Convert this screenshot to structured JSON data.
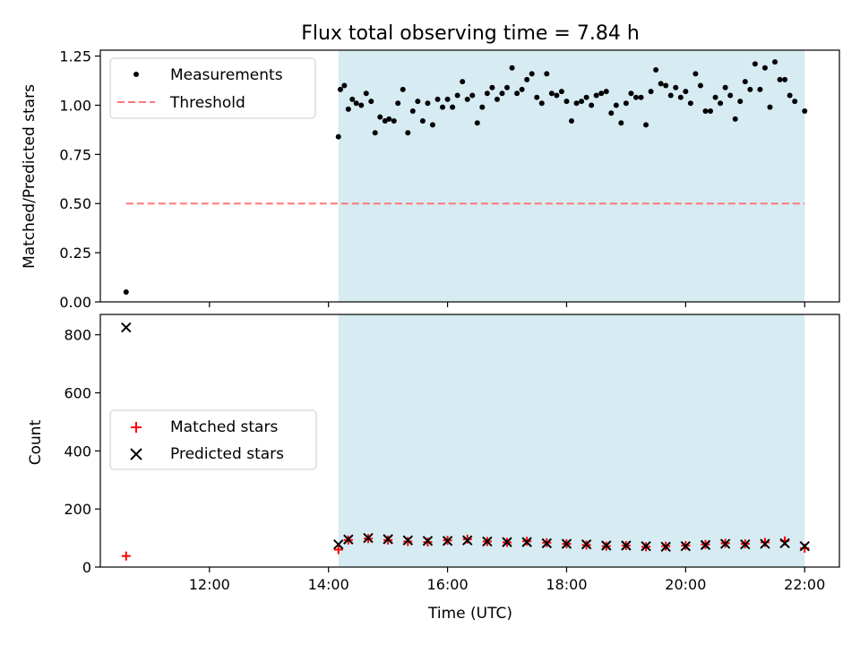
{
  "chart_data": [
    {
      "type": "scatter",
      "title": "Flux total observing time = 7.84 h",
      "ylabel": "Matched/Predicted stars",
      "xlim": [
        "10:10",
        "22:35"
      ],
      "ylim": [
        0,
        1.28
      ],
      "yticks": [
        "0.00",
        "0.25",
        "0.50",
        "0.75",
        "1.00",
        "1.25"
      ],
      "shaded_span": {
        "start": "14:10",
        "end": "22:00",
        "color": "#add8e6"
      },
      "legend": {
        "placement": "upper-left",
        "entries": [
          "Measurements",
          "Threshold"
        ]
      },
      "series": [
        {
          "name": "Measurements",
          "marker": "dot",
          "color": "#000000",
          "points": [
            [
              "10:36",
              0.05
            ],
            [
              "14:10",
              0.84
            ],
            [
              "14:12",
              1.08
            ],
            [
              "14:16",
              1.1
            ],
            [
              "14:20",
              0.98
            ],
            [
              "14:24",
              1.03
            ],
            [
              "14:28",
              1.01
            ],
            [
              "14:33",
              1.0
            ],
            [
              "14:38",
              1.06
            ],
            [
              "14:43",
              1.02
            ],
            [
              "14:47",
              0.86
            ],
            [
              "14:52",
              0.94
            ],
            [
              "14:57",
              0.92
            ],
            [
              "15:01",
              0.93
            ],
            [
              "15:06",
              0.92
            ],
            [
              "15:10",
              1.01
            ],
            [
              "15:15",
              1.08
            ],
            [
              "15:20",
              0.86
            ],
            [
              "15:25",
              0.97
            ],
            [
              "15:30",
              1.02
            ],
            [
              "15:35",
              0.92
            ],
            [
              "15:40",
              1.01
            ],
            [
              "15:45",
              0.9
            ],
            [
              "15:50",
              1.03
            ],
            [
              "15:55",
              0.99
            ],
            [
              "16:00",
              1.03
            ],
            [
              "16:05",
              0.99
            ],
            [
              "16:10",
              1.05
            ],
            [
              "16:15",
              1.12
            ],
            [
              "16:20",
              1.03
            ],
            [
              "16:25",
              1.05
            ],
            [
              "16:30",
              0.91
            ],
            [
              "16:35",
              0.99
            ],
            [
              "16:40",
              1.06
            ],
            [
              "16:45",
              1.09
            ],
            [
              "16:50",
              1.03
            ],
            [
              "16:55",
              1.06
            ],
            [
              "17:00",
              1.09
            ],
            [
              "17:05",
              1.19
            ],
            [
              "17:10",
              1.06
            ],
            [
              "17:15",
              1.08
            ],
            [
              "17:20",
              1.13
            ],
            [
              "17:25",
              1.16
            ],
            [
              "17:30",
              1.04
            ],
            [
              "17:35",
              1.01
            ],
            [
              "17:40",
              1.16
            ],
            [
              "17:45",
              1.06
            ],
            [
              "17:50",
              1.05
            ],
            [
              "17:55",
              1.07
            ],
            [
              "18:00",
              1.02
            ],
            [
              "18:05",
              0.92
            ],
            [
              "18:10",
              1.01
            ],
            [
              "18:15",
              1.02
            ],
            [
              "18:20",
              1.04
            ],
            [
              "18:25",
              1.0
            ],
            [
              "18:30",
              1.05
            ],
            [
              "18:35",
              1.06
            ],
            [
              "18:40",
              1.07
            ],
            [
              "18:45",
              0.96
            ],
            [
              "18:50",
              1.0
            ],
            [
              "18:55",
              0.91
            ],
            [
              "19:00",
              1.01
            ],
            [
              "19:05",
              1.06
            ],
            [
              "19:10",
              1.04
            ],
            [
              "19:15",
              1.04
            ],
            [
              "19:20",
              0.9
            ],
            [
              "19:25",
              1.07
            ],
            [
              "19:30",
              1.18
            ],
            [
              "19:35",
              1.11
            ],
            [
              "19:40",
              1.1
            ],
            [
              "19:45",
              1.05
            ],
            [
              "19:50",
              1.09
            ],
            [
              "19:55",
              1.04
            ],
            [
              "20:00",
              1.07
            ],
            [
              "20:05",
              1.01
            ],
            [
              "20:10",
              1.16
            ],
            [
              "20:15",
              1.1
            ],
            [
              "20:20",
              0.97
            ],
            [
              "20:25",
              0.97
            ],
            [
              "20:30",
              1.04
            ],
            [
              "20:35",
              1.01
            ],
            [
              "20:40",
              1.09
            ],
            [
              "20:45",
              1.05
            ],
            [
              "20:50",
              0.93
            ],
            [
              "20:55",
              1.02
            ],
            [
              "21:00",
              1.12
            ],
            [
              "21:05",
              1.08
            ],
            [
              "21:10",
              1.21
            ],
            [
              "21:15",
              1.08
            ],
            [
              "21:20",
              1.19
            ],
            [
              "21:25",
              0.99
            ],
            [
              "21:30",
              1.22
            ],
            [
              "21:35",
              1.13
            ],
            [
              "21:40",
              1.13
            ],
            [
              "21:45",
              1.05
            ],
            [
              "21:50",
              1.02
            ],
            [
              "22:00",
              0.97
            ]
          ]
        },
        {
          "name": "Threshold",
          "type": "line",
          "style": "dashed",
          "color": "#ff7777",
          "points": [
            [
              "10:36",
              0.5
            ],
            [
              "22:00",
              0.5
            ]
          ]
        }
      ]
    },
    {
      "type": "scatter",
      "xlabel": "Time (UTC)",
      "ylabel": "Count",
      "xlim": [
        "10:10",
        "22:35"
      ],
      "ylim": [
        0,
        870
      ],
      "yticks": [
        "0",
        "200",
        "400",
        "600",
        "800"
      ],
      "xticks": [
        "12:00",
        "14:00",
        "16:00",
        "18:00",
        "20:00",
        "22:00"
      ],
      "shaded_span": {
        "start": "14:10",
        "end": "22:00",
        "color": "#add8e6"
      },
      "legend": {
        "placement": "center-left",
        "entries": [
          "Matched stars",
          "Predicted stars"
        ]
      },
      "series": [
        {
          "name": "Matched stars",
          "marker": "plus",
          "color": "#ff0000",
          "points": [
            [
              "10:36",
              38
            ],
            [
              "14:10",
              60
            ],
            [
              "14:20",
              93
            ],
            [
              "14:40",
              98
            ],
            [
              "15:00",
              93
            ],
            [
              "15:20",
              88
            ],
            [
              "15:40",
              86
            ],
            [
              "16:00",
              92
            ],
            [
              "16:20",
              96
            ],
            [
              "16:40",
              88
            ],
            [
              "17:00",
              85
            ],
            [
              "17:20",
              89
            ],
            [
              "17:40",
              84
            ],
            [
              "18:00",
              80
            ],
            [
              "18:20",
              76
            ],
            [
              "18:40",
              72
            ],
            [
              "19:00",
              74
            ],
            [
              "19:20",
              70
            ],
            [
              "19:40",
              72
            ],
            [
              "20:00",
              74
            ],
            [
              "20:20",
              78
            ],
            [
              "20:40",
              82
            ],
            [
              "21:00",
              80
            ],
            [
              "21:20",
              85
            ],
            [
              "21:40",
              90
            ],
            [
              "22:00",
              65
            ]
          ]
        },
        {
          "name": "Predicted stars",
          "marker": "x",
          "color": "#000000",
          "points": [
            [
              "10:36",
              825
            ],
            [
              "14:10",
              78
            ],
            [
              "14:20",
              95
            ],
            [
              "14:40",
              100
            ],
            [
              "15:00",
              96
            ],
            [
              "15:20",
              92
            ],
            [
              "15:40",
              90
            ],
            [
              "16:00",
              90
            ],
            [
              "16:20",
              92
            ],
            [
              "16:40",
              88
            ],
            [
              "17:00",
              86
            ],
            [
              "17:20",
              86
            ],
            [
              "17:40",
              82
            ],
            [
              "18:00",
              80
            ],
            [
              "18:20",
              78
            ],
            [
              "18:40",
              74
            ],
            [
              "19:00",
              74
            ],
            [
              "19:20",
              72
            ],
            [
              "19:40",
              70
            ],
            [
              "20:00",
              72
            ],
            [
              "20:20",
              76
            ],
            [
              "20:40",
              80
            ],
            [
              "21:00",
              78
            ],
            [
              "21:20",
              80
            ],
            [
              "21:40",
              82
            ],
            [
              "22:00",
              72
            ]
          ]
        }
      ]
    }
  ]
}
